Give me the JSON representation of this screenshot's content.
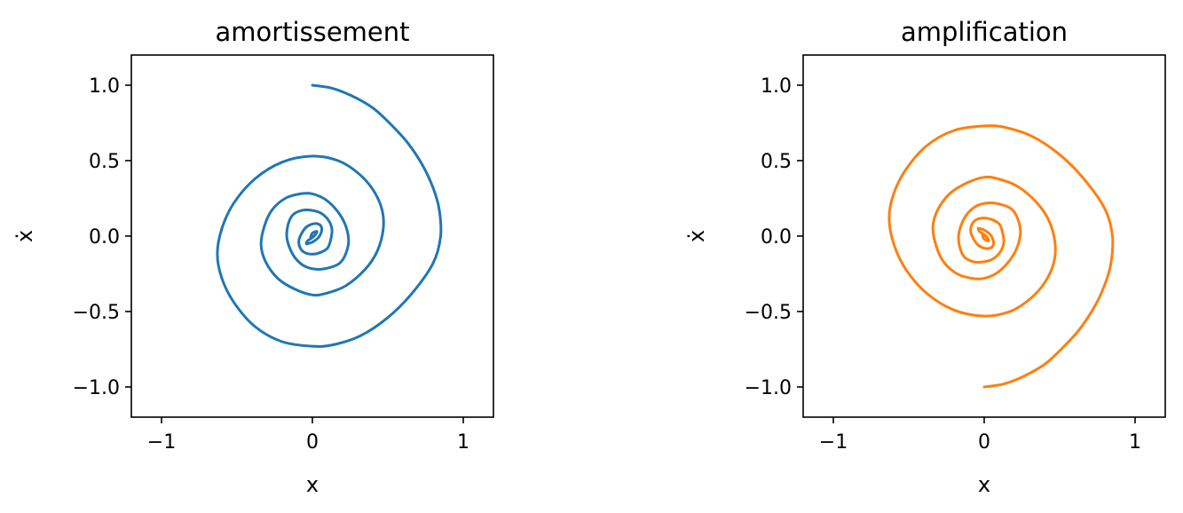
{
  "chart_data": [
    {
      "type": "line",
      "title": "amortissement",
      "xlabel": "x",
      "ylabel": "ẋ",
      "xlim": [
        -1.2,
        1.2
      ],
      "ylim": [
        -1.2,
        1.2
      ],
      "xticks": [
        -1,
        0,
        1
      ],
      "xtick_labels": [
        "−1",
        "0",
        "1"
      ],
      "yticks": [
        -1.0,
        -0.5,
        0.0,
        0.5,
        1.0
      ],
      "ytick_labels": [
        "−1.0",
        "−0.5",
        "0.0",
        "0.5",
        "1.0"
      ],
      "grid": false,
      "series": [
        {
          "color": "#1f77b4",
          "x": [
            0.0,
            0.13,
            0.26,
            0.4,
            0.52,
            0.63,
            0.73,
            0.8,
            0.84,
            0.85,
            0.8,
            0.66,
            0.5,
            0.32,
            0.14,
            0.0,
            -0.2,
            -0.38,
            -0.52,
            -0.6,
            -0.63,
            -0.6,
            -0.52,
            -0.38,
            -0.2,
            0.0,
            0.17,
            0.3,
            0.4,
            0.46,
            0.47,
            0.43,
            0.35,
            0.22,
            0.09,
            0.0,
            -0.12,
            -0.23,
            -0.31,
            -0.34,
            -0.32,
            -0.27,
            -0.18,
            -0.08,
            0.0,
            0.09,
            0.17,
            0.22,
            0.24,
            0.22,
            0.18,
            0.11,
            0.03,
            -0.05,
            -0.11,
            -0.15,
            -0.17,
            -0.16,
            -0.13,
            -0.07,
            0.0,
            0.06,
            0.11,
            0.13,
            0.12,
            0.1,
            0.05,
            0.0,
            -0.05,
            -0.08,
            -0.09,
            -0.07,
            -0.04,
            0.0,
            0.04,
            0.06,
            0.06,
            0.04,
            0.0,
            -0.03,
            -0.04,
            -0.03,
            0.0,
            0.02,
            0.03,
            0.02,
            0.0,
            -0.01,
            -0.01,
            0.0
          ],
          "y": [
            1.0,
            0.98,
            0.93,
            0.85,
            0.74,
            0.62,
            0.47,
            0.32,
            0.18,
            0.0,
            -0.18,
            -0.38,
            -0.54,
            -0.66,
            -0.72,
            -0.73,
            -0.7,
            -0.6,
            -0.44,
            -0.28,
            -0.12,
            0.05,
            0.22,
            0.38,
            0.49,
            0.53,
            0.5,
            0.42,
            0.31,
            0.18,
            0.05,
            -0.1,
            -0.22,
            -0.33,
            -0.38,
            -0.39,
            -0.35,
            -0.28,
            -0.17,
            -0.06,
            0.06,
            0.17,
            0.25,
            0.28,
            0.28,
            0.24,
            0.16,
            0.07,
            -0.03,
            -0.12,
            -0.18,
            -0.21,
            -0.22,
            -0.2,
            -0.15,
            -0.08,
            0.0,
            0.08,
            0.14,
            0.17,
            0.17,
            0.15,
            0.1,
            0.04,
            -0.03,
            -0.08,
            -0.11,
            -0.12,
            -0.11,
            -0.08,
            -0.03,
            0.02,
            0.06,
            0.08,
            0.08,
            0.06,
            0.03,
            -0.01,
            -0.04,
            -0.05,
            -0.05,
            -0.03,
            -0.01,
            0.01,
            0.03,
            0.03,
            0.02,
            0.0,
            -0.01,
            0.0
          ]
        }
      ]
    },
    {
      "type": "line",
      "title": "amplification",
      "xlabel": "x",
      "ylabel": "ẋ",
      "xlim": [
        -1.2,
        1.2
      ],
      "ylim": [
        -1.2,
        1.2
      ],
      "xticks": [
        -1,
        0,
        1
      ],
      "xtick_labels": [
        "−1",
        "0",
        "1"
      ],
      "yticks": [
        -1.0,
        -0.5,
        0.0,
        0.5,
        1.0
      ],
      "ytick_labels": [
        "−1.0",
        "−0.5",
        "0.0",
        "0.5",
        "1.0"
      ],
      "grid": false,
      "series": [
        {
          "color": "#ff7f0e",
          "x": [
            0.0,
            0.13,
            0.26,
            0.4,
            0.52,
            0.63,
            0.73,
            0.8,
            0.84,
            0.85,
            0.8,
            0.66,
            0.5,
            0.32,
            0.14,
            0.0,
            -0.2,
            -0.38,
            -0.52,
            -0.6,
            -0.63,
            -0.6,
            -0.52,
            -0.38,
            -0.2,
            0.0,
            0.17,
            0.3,
            0.4,
            0.46,
            0.47,
            0.43,
            0.35,
            0.22,
            0.09,
            0.0,
            -0.12,
            -0.23,
            -0.31,
            -0.34,
            -0.32,
            -0.27,
            -0.18,
            -0.08,
            0.0,
            0.09,
            0.17,
            0.22,
            0.24,
            0.22,
            0.18,
            0.11,
            0.03,
            -0.05,
            -0.11,
            -0.15,
            -0.17,
            -0.16,
            -0.13,
            -0.07,
            0.0,
            0.06,
            0.11,
            0.13,
            0.12,
            0.1,
            0.05,
            0.0,
            -0.05,
            -0.08,
            -0.09,
            -0.07,
            -0.04,
            0.0,
            0.04,
            0.06,
            0.06,
            0.04,
            0.0,
            -0.03,
            -0.04,
            -0.03,
            0.0,
            0.02,
            0.03,
            0.02,
            0.0,
            -0.01,
            -0.01,
            0.0
          ],
          "y": [
            -1.0,
            -0.98,
            -0.93,
            -0.85,
            -0.74,
            -0.62,
            -0.47,
            -0.32,
            -0.18,
            0.0,
            0.18,
            0.38,
            0.54,
            0.66,
            0.72,
            0.73,
            0.7,
            0.6,
            0.44,
            0.28,
            0.12,
            -0.05,
            -0.22,
            -0.38,
            -0.49,
            -0.53,
            -0.5,
            -0.42,
            -0.31,
            -0.18,
            -0.05,
            0.1,
            0.22,
            0.33,
            0.38,
            0.39,
            0.35,
            0.28,
            0.17,
            0.06,
            -0.06,
            -0.17,
            -0.25,
            -0.28,
            -0.28,
            -0.24,
            -0.16,
            -0.07,
            0.03,
            0.12,
            0.18,
            0.21,
            0.22,
            0.2,
            0.15,
            0.08,
            0.0,
            -0.08,
            -0.14,
            -0.17,
            -0.17,
            -0.15,
            -0.1,
            -0.04,
            0.03,
            0.08,
            0.11,
            0.12,
            0.11,
            0.08,
            0.03,
            -0.02,
            -0.06,
            -0.08,
            -0.08,
            -0.06,
            -0.03,
            0.01,
            0.04,
            0.05,
            0.05,
            0.03,
            0.01,
            -0.01,
            -0.03,
            -0.03,
            -0.02,
            0.0,
            0.01,
            0.0
          ]
        }
      ]
    }
  ]
}
